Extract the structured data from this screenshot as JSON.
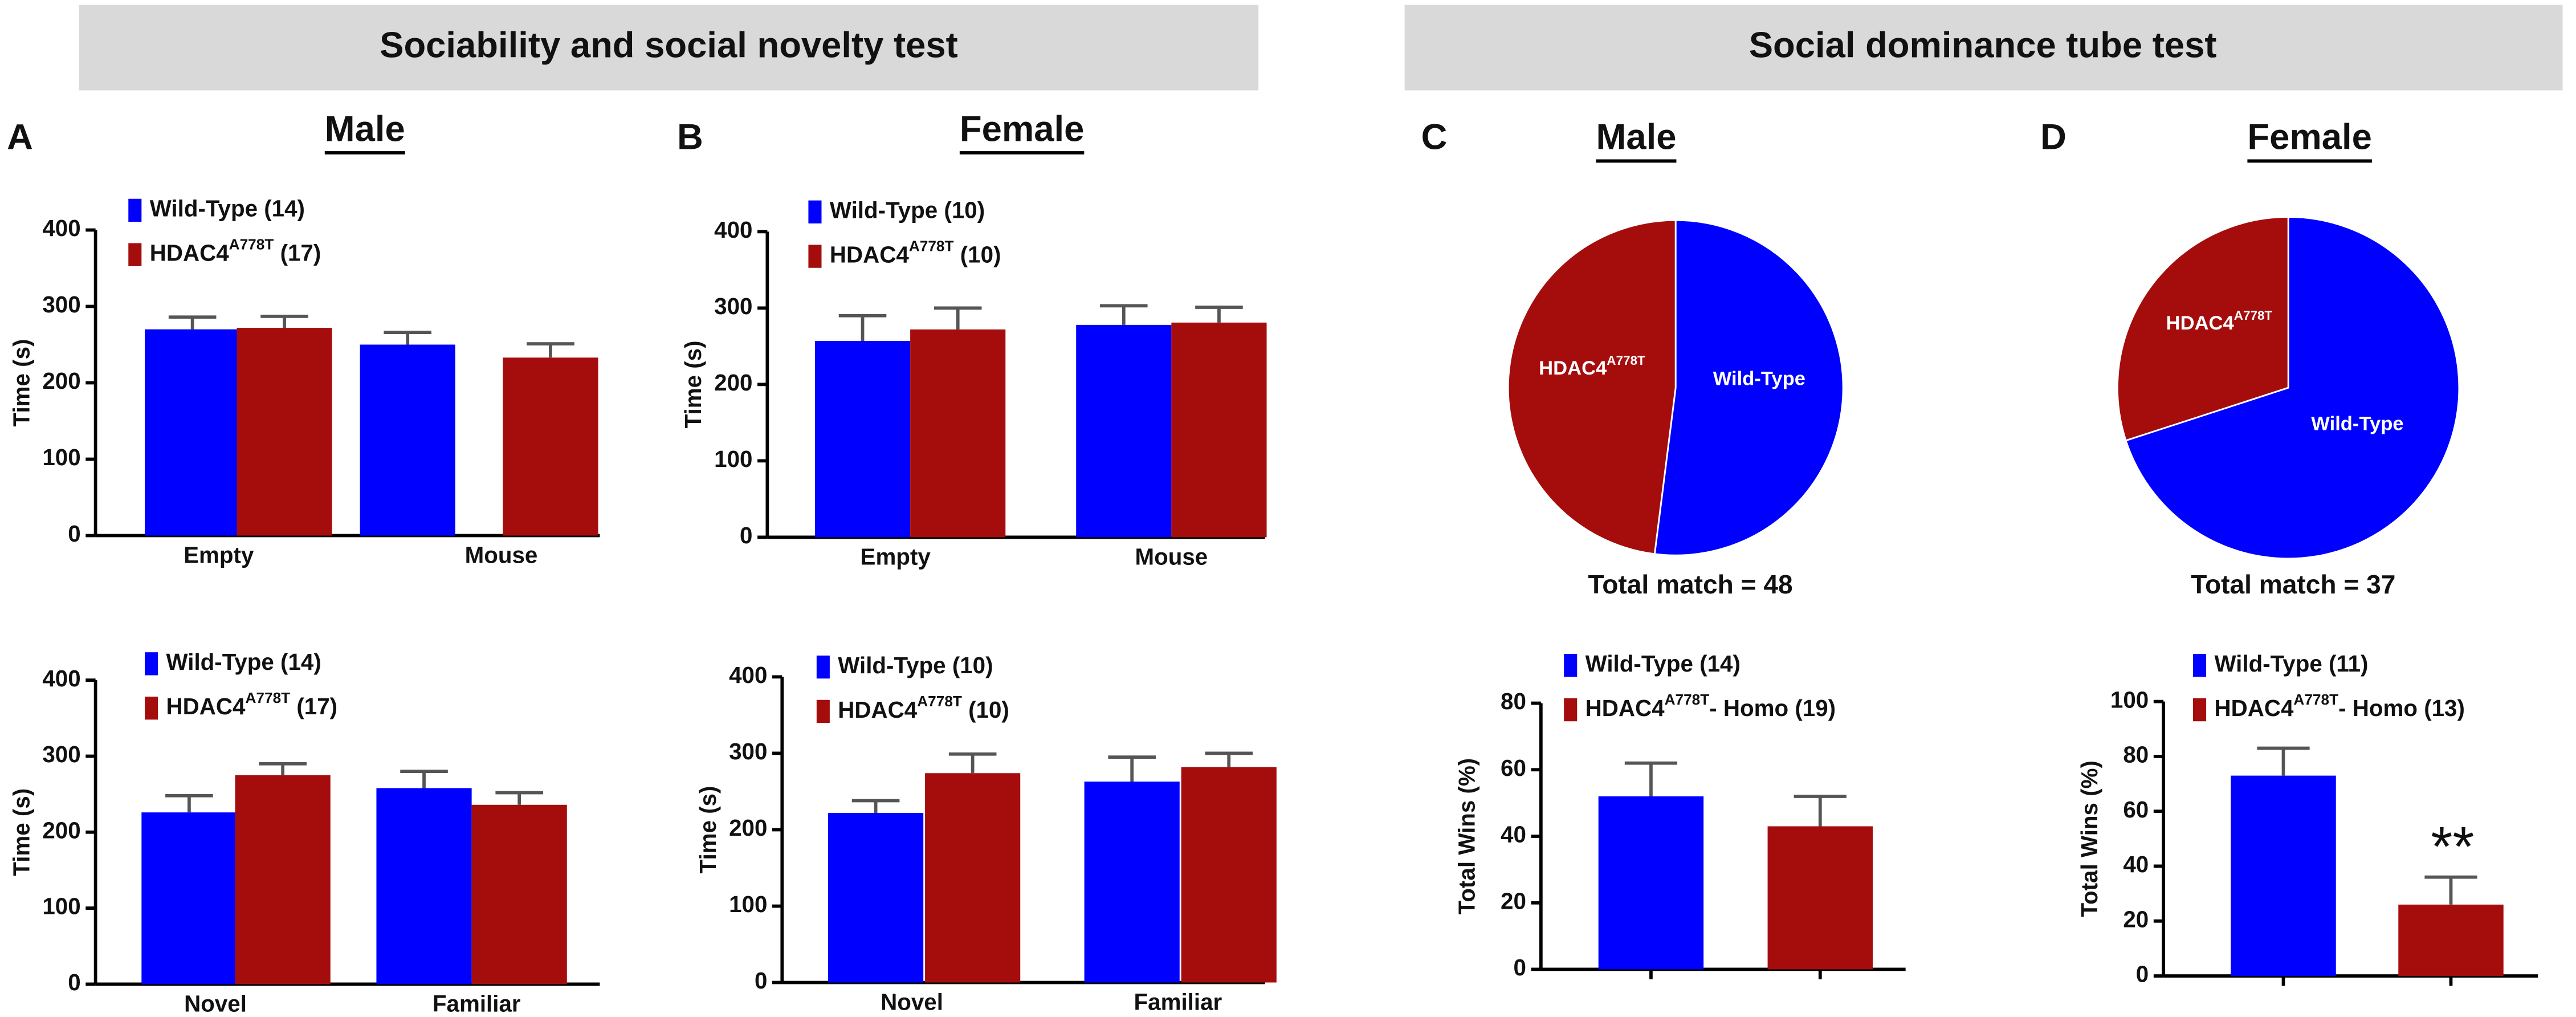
{
  "headers": [
    "Sociability and social novelty test",
    "Social dominance tube test"
  ],
  "chart_data": [
    {
      "type": "bar",
      "panel": "A",
      "title": "Male",
      "y_label": "Time (s)",
      "categories": [
        "Empty",
        "Mouse"
      ],
      "series": [
        {
          "name": "Wild-Type (14)",
          "color": "#0000ff",
          "values": [
            270,
            250
          ],
          "errors": [
            16,
            16
          ]
        },
        {
          "name": "HDAC4A778T (17)",
          "color": "#a50d0d",
          "values": [
            272,
            233
          ],
          "errors": [
            15,
            18
          ]
        }
      ],
      "ylim": [
        0,
        400
      ],
      "yticks": [
        0,
        100,
        200,
        300,
        400
      ]
    },
    {
      "type": "bar",
      "y_label": "Time (s)",
      "categories": [
        "Novel",
        "Familiar"
      ],
      "series": [
        {
          "name": "Wild-Type (14)",
          "color": "#0000ff",
          "values": [
            226,
            258
          ],
          "errors": [
            22,
            22
          ]
        },
        {
          "name": "HDAC4A778T (17)",
          "color": "#a50d0d",
          "values": [
            275,
            236
          ],
          "errors": [
            15,
            16
          ]
        }
      ],
      "ylim": [
        0,
        400
      ],
      "yticks": [
        0,
        100,
        200,
        300,
        400
      ]
    },
    {
      "type": "bar",
      "panel": "B",
      "title": "Female",
      "y_label": "Time (s)",
      "categories": [
        "Empty",
        "Mouse"
      ],
      "series": [
        {
          "name": "Wild-Type (10)",
          "color": "#0000ff",
          "values": [
            257,
            278
          ],
          "errors": [
            33,
            25
          ]
        },
        {
          "name": "HDAC4A778T (10)",
          "color": "#a50d0d",
          "values": [
            272,
            281
          ],
          "errors": [
            28,
            20
          ]
        }
      ],
      "ylim": [
        0,
        400
      ],
      "yticks": [
        0,
        100,
        200,
        300,
        400
      ]
    },
    {
      "type": "bar",
      "y_label": "Time (s)",
      "categories": [
        "Novel",
        "Familiar"
      ],
      "series": [
        {
          "name": "Wild-Type (10)",
          "color": "#0000ff",
          "values": [
            222,
            263
          ],
          "errors": [
            16,
            32
          ]
        },
        {
          "name": "HDAC4A778T (10)",
          "color": "#a50d0d",
          "values": [
            274,
            282
          ],
          "errors": [
            25,
            18
          ]
        }
      ],
      "ylim": [
        0,
        400
      ],
      "yticks": [
        0,
        100,
        200,
        300,
        400
      ]
    },
    {
      "type": "pie",
      "panel": "C",
      "title": "Male",
      "labels": [
        "Wild-Type",
        "HDAC4A778T"
      ],
      "values": [
        52,
        48
      ],
      "colors": [
        "#0000ff",
        "#a50d0d"
      ],
      "annotation": "Total match = 48"
    },
    {
      "type": "pie",
      "panel": "D",
      "title": "Female",
      "labels": [
        "Wild-Type",
        "HDAC4A778T"
      ],
      "values": [
        70,
        30
      ],
      "colors": [
        "#0000ff",
        "#a50d0d"
      ],
      "annotation": "Total match = 37"
    },
    {
      "type": "bar",
      "y_label": "Total Wins (%)",
      "categories": [
        null
      ],
      "series": [
        {
          "name": "Wild-Type (14)",
          "color": "#0000ff",
          "values": [
            52
          ],
          "errors": [
            10
          ]
        },
        {
          "name": "HDAC4A778T- Homo (19)",
          "color": "#a50d0d",
          "values": [
            43
          ],
          "errors": [
            9
          ]
        }
      ],
      "ylim": [
        0,
        80
      ],
      "yticks": [
        0,
        20,
        40,
        60,
        80
      ]
    },
    {
      "type": "bar",
      "y_label": "Total Wins (%)",
      "categories": [
        null
      ],
      "series": [
        {
          "name": "Wild-Type (11)",
          "color": "#0000ff",
          "values": [
            73
          ],
          "errors": [
            10
          ]
        },
        {
          "name": "HDAC4A778T- Homo (13)",
          "color": "#a50d0d",
          "values": [
            26
          ],
          "errors": [
            10
          ]
        }
      ],
      "ylim": [
        0,
        100
      ],
      "yticks": [
        0,
        20,
        40,
        60,
        80,
        100
      ],
      "annotation": "**"
    }
  ]
}
